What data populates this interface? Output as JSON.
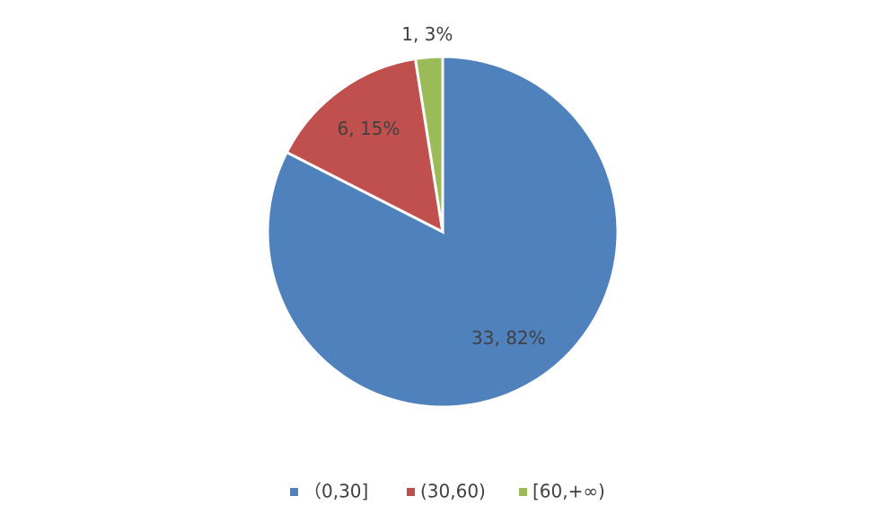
{
  "chart_data": {
    "type": "pie",
    "categories": [
      "（0,30]",
      "(30,60)",
      "[60,+∞)"
    ],
    "values": [
      33,
      6,
      1
    ],
    "value_labels": [
      "33, 82%",
      "6, 15%",
      "1, 3%"
    ],
    "colors": [
      "#4f81bd",
      "#c0504d",
      "#9bbb59"
    ],
    "legend": "bottom"
  }
}
